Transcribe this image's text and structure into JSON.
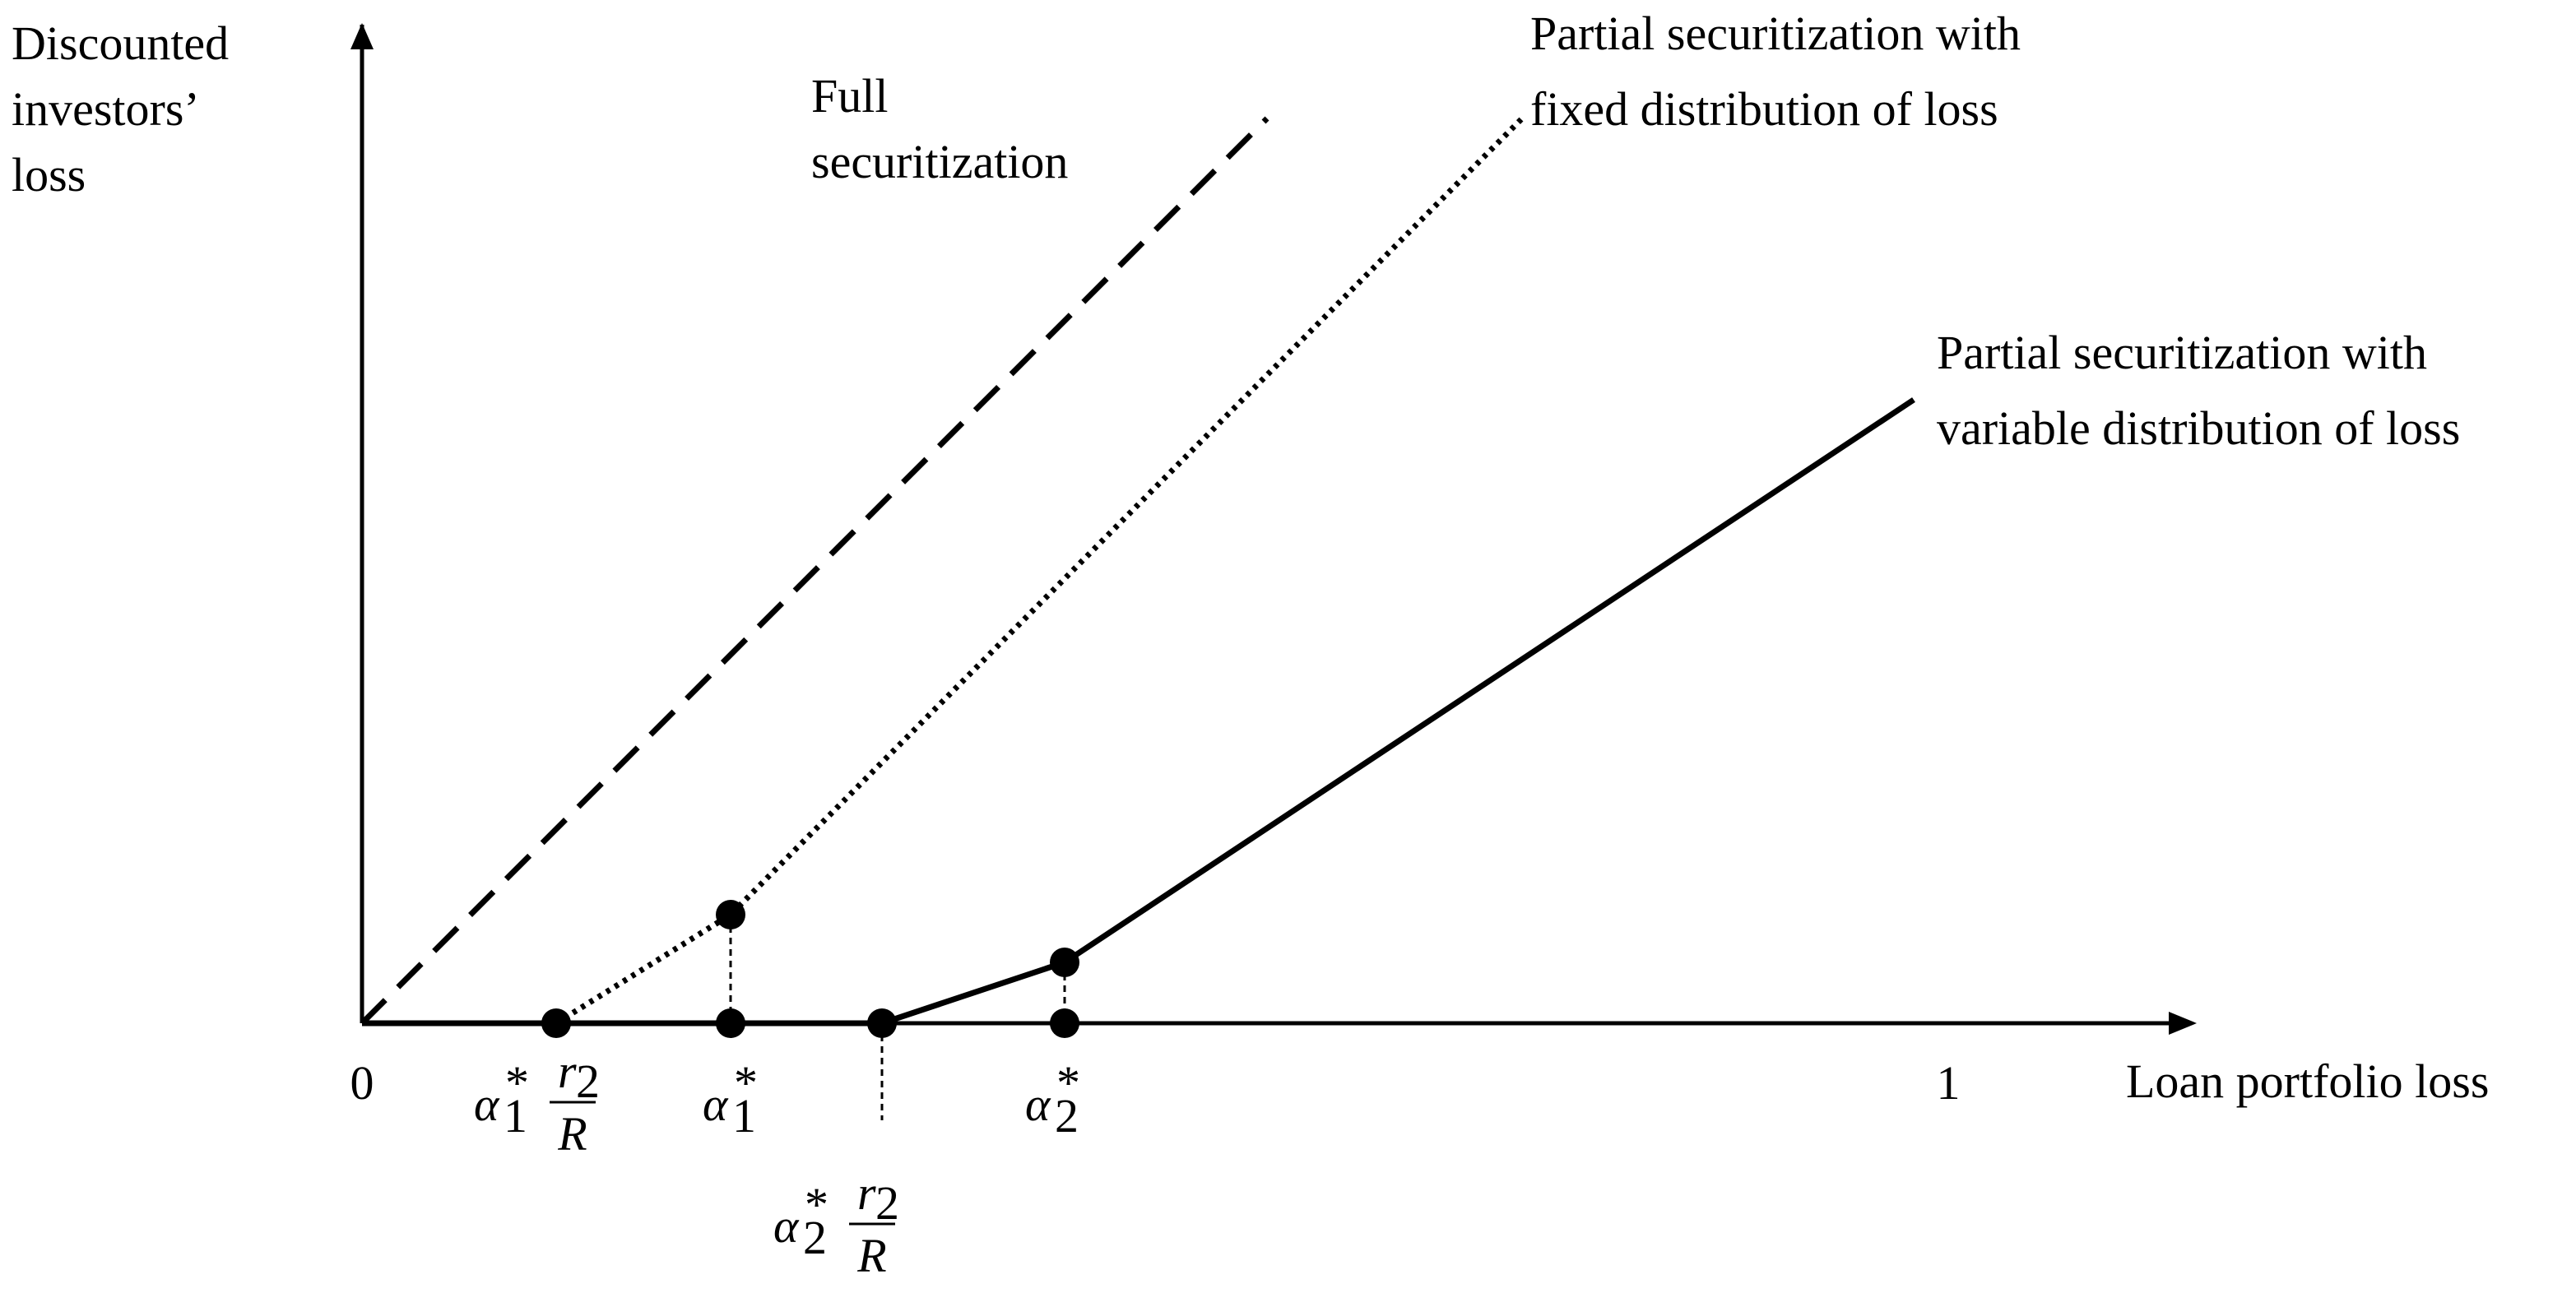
{
  "axes": {
    "y_label": [
      "Discounted",
      "investors’",
      "loss"
    ],
    "x_label": "Loan portfolio loss",
    "origin": "0",
    "x_end": "1"
  },
  "curves": [
    {
      "label": [
        "Full",
        "securitization"
      ]
    },
    {
      "label": [
        "Partial securitization with",
        "fixed distribution of loss"
      ]
    },
    {
      "label": [
        "Partial securitization with",
        "variable distribution of loss"
      ]
    }
  ],
  "markers": [
    {
      "symbol": "α",
      "sub": "1",
      "sup": "*",
      "num": "r",
      "num_sub": "2",
      "den": "R"
    },
    {
      "symbol": "α",
      "sub": "1",
      "sup": "*"
    },
    {
      "symbol": "α",
      "sub": "2",
      "sup": "*",
      "num": "r",
      "num_sub": "2",
      "den": "R"
    },
    {
      "symbol": "α",
      "sub": "2",
      "sup": "*"
    }
  ]
}
